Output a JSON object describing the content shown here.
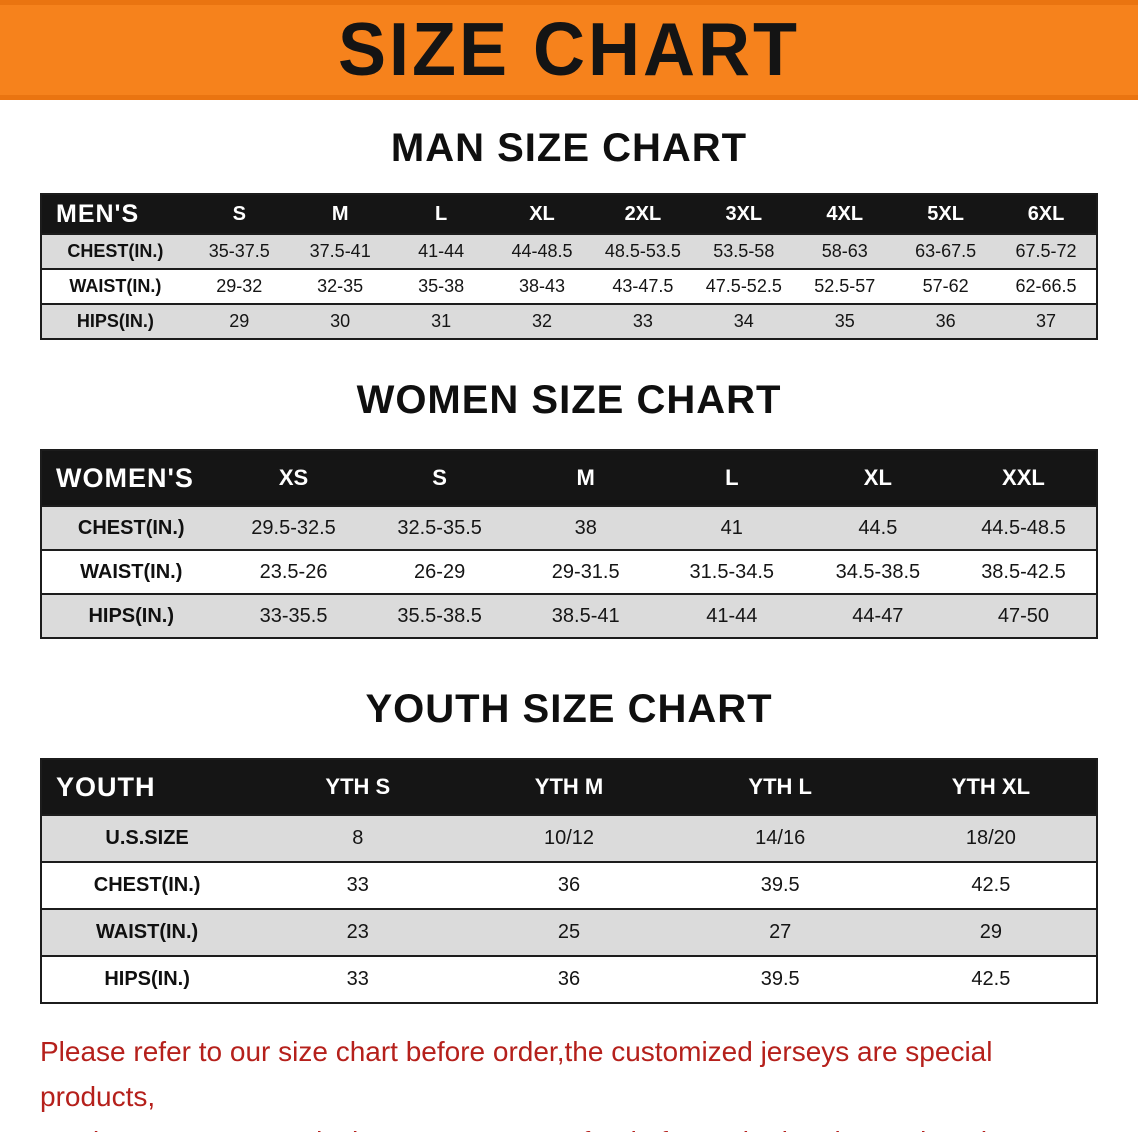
{
  "banner": {
    "title": "SIZE CHART",
    "bg_color": "#f6821c",
    "text_color": "#141414"
  },
  "sections": [
    {
      "id": "men",
      "heading": "MAN SIZE CHART",
      "table": {
        "header": [
          "MEN'S",
          "S",
          "M",
          "L",
          "XL",
          "2XL",
          "3XL",
          "4XL",
          "5XL",
          "6XL"
        ],
        "rows": [
          {
            "label": "CHEST(IN.)",
            "values": [
              "35-37.5",
              "37.5-41",
              "41-44",
              "44-48.5",
              "48.5-53.5",
              "53.5-58",
              "58-63",
              "63-67.5",
              "67.5-72"
            ]
          },
          {
            "label": "WAIST(IN.)",
            "values": [
              "29-32",
              "32-35",
              "35-38",
              "38-43",
              "43-47.5",
              "47.5-52.5",
              "52.5-57",
              "57-62",
              "62-66.5"
            ]
          },
          {
            "label": "HIPS(IN.)",
            "values": [
              "29",
              "30",
              "31",
              "32",
              "33",
              "34",
              "35",
              "36",
              "37"
            ]
          }
        ]
      }
    },
    {
      "id": "women",
      "heading": "WOMEN SIZE CHART",
      "table": {
        "header": [
          "WOMEN'S",
          "XS",
          "S",
          "M",
          "L",
          "XL",
          "XXL"
        ],
        "rows": [
          {
            "label": "CHEST(IN.)",
            "values": [
              "29.5-32.5",
              "32.5-35.5",
              "38",
              "41",
              "44.5",
              "44.5-48.5"
            ]
          },
          {
            "label": "WAIST(IN.)",
            "values": [
              "23.5-26",
              "26-29",
              "29-31.5",
              "31.5-34.5",
              "34.5-38.5",
              "38.5-42.5"
            ]
          },
          {
            "label": "HIPS(IN.)",
            "values": [
              "33-35.5",
              "35.5-38.5",
              "38.5-41",
              "41-44",
              "44-47",
              "47-50"
            ]
          }
        ]
      }
    },
    {
      "id": "youth",
      "heading": "YOUTH SIZE CHART",
      "table": {
        "header": [
          "YOUTH",
          "YTH S",
          "YTH M",
          "YTH L",
          "YTH XL"
        ],
        "rows": [
          {
            "label": "U.S.SIZE",
            "values": [
              "8",
              "10/12",
              "14/16",
              "18/20"
            ]
          },
          {
            "label": "CHEST(IN.)",
            "values": [
              "33",
              "36",
              "39.5",
              "42.5"
            ]
          },
          {
            "label": "WAIST(IN.)",
            "values": [
              "23",
              "25",
              "27",
              "29"
            ]
          },
          {
            "label": "HIPS(IN.)",
            "values": [
              "33",
              "36",
              "39.5",
              "42.5"
            ]
          }
        ]
      }
    }
  ],
  "note": {
    "color": "#b5201b",
    "lines": [
      "Please refer to our size chart before order,the customized jerseys are special products,",
      "we don't accept cancel, change, teturn or refund after order has been placed!"
    ]
  }
}
